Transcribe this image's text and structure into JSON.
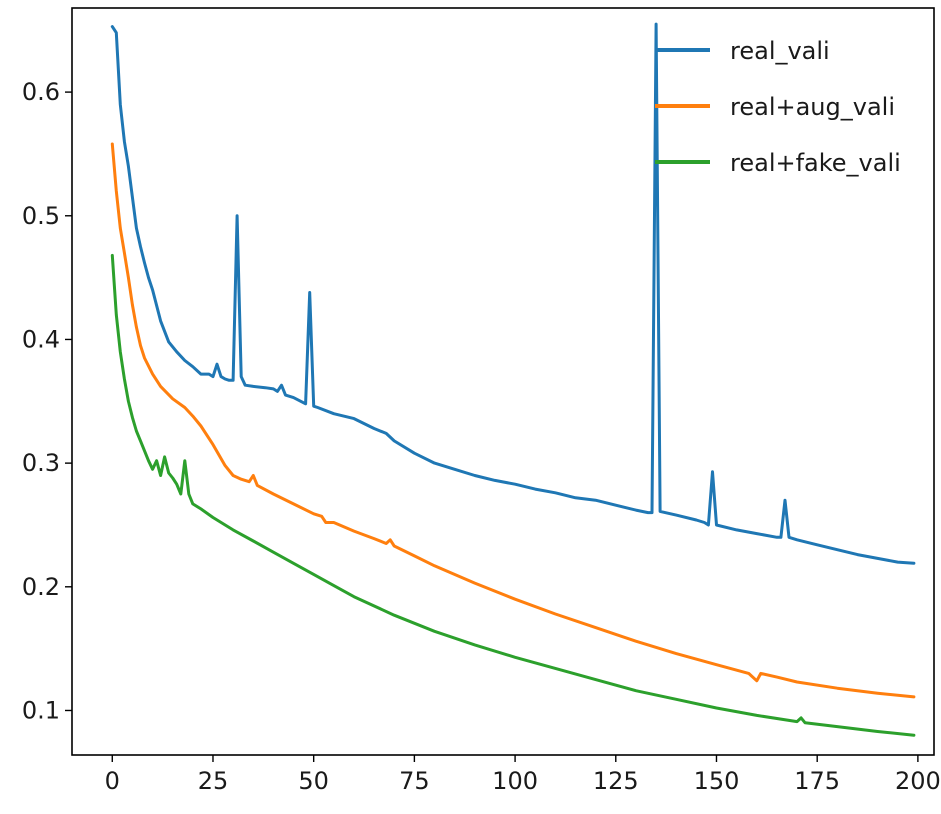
{
  "chart_data": {
    "type": "line",
    "title": "",
    "xlabel": "",
    "ylabel": "",
    "xlim": [
      -10,
      204
    ],
    "ylim": [
      0.064,
      0.668
    ],
    "xticks": [
      0,
      25,
      50,
      75,
      100,
      125,
      150,
      175,
      200
    ],
    "xtick_labels": [
      "0",
      "25",
      "50",
      "75",
      "100",
      "125",
      "150",
      "175",
      "200"
    ],
    "yticks": [
      0.1,
      0.2,
      0.3,
      0.4,
      0.5,
      0.6
    ],
    "ytick_labels": [
      "0.1",
      "0.2",
      "0.3",
      "0.4",
      "0.5",
      "0.6"
    ],
    "grid": false,
    "legend_position": "top-right",
    "series": [
      {
        "name": "real_vali",
        "color": "#1f77b4",
        "x": [
          0,
          1,
          2,
          3,
          4,
          5,
          6,
          7,
          8,
          9,
          10,
          12,
          14,
          16,
          18,
          20,
          22,
          24,
          25,
          26,
          27,
          28,
          29,
          30,
          31,
          32,
          33,
          35,
          38,
          40,
          41,
          42,
          43,
          45,
          48,
          49,
          50,
          51,
          55,
          60,
          65,
          68,
          70,
          75,
          80,
          85,
          90,
          95,
          100,
          105,
          110,
          115,
          120,
          125,
          130,
          133,
          134,
          135,
          136,
          140,
          145,
          147,
          148,
          149,
          150,
          155,
          160,
          165,
          166,
          167,
          168,
          170,
          175,
          180,
          185,
          190,
          195,
          199
        ],
        "y": [
          0.653,
          0.648,
          0.59,
          0.56,
          0.54,
          0.515,
          0.49,
          0.475,
          0.462,
          0.45,
          0.44,
          0.415,
          0.398,
          0.39,
          0.383,
          0.378,
          0.372,
          0.372,
          0.37,
          0.38,
          0.37,
          0.368,
          0.367,
          0.367,
          0.5,
          0.37,
          0.363,
          0.362,
          0.361,
          0.36,
          0.358,
          0.363,
          0.355,
          0.353,
          0.348,
          0.438,
          0.346,
          0.345,
          0.34,
          0.336,
          0.328,
          0.324,
          0.318,
          0.308,
          0.3,
          0.295,
          0.29,
          0.286,
          0.283,
          0.279,
          0.276,
          0.272,
          0.27,
          0.266,
          0.262,
          0.26,
          0.26,
          0.655,
          0.261,
          0.258,
          0.254,
          0.252,
          0.25,
          0.293,
          0.25,
          0.246,
          0.243,
          0.24,
          0.24,
          0.27,
          0.24,
          0.238,
          0.234,
          0.23,
          0.226,
          0.223,
          0.22,
          0.219
        ]
      },
      {
        "name": "real+aug_vali",
        "color": "#ff7f0e",
        "x": [
          0,
          1,
          2,
          3,
          4,
          5,
          6,
          7,
          8,
          10,
          12,
          15,
          18,
          20,
          22,
          25,
          28,
          30,
          32,
          34,
          35,
          36,
          40,
          45,
          50,
          52,
          53,
          55,
          60,
          65,
          68,
          69,
          70,
          75,
          80,
          90,
          100,
          110,
          120,
          130,
          140,
          150,
          158,
          160,
          161,
          165,
          170,
          180,
          190,
          199
        ],
        "y": [
          0.558,
          0.52,
          0.49,
          0.47,
          0.45,
          0.428,
          0.41,
          0.395,
          0.385,
          0.372,
          0.362,
          0.352,
          0.345,
          0.338,
          0.33,
          0.315,
          0.298,
          0.29,
          0.287,
          0.285,
          0.29,
          0.282,
          0.275,
          0.267,
          0.259,
          0.257,
          0.252,
          0.252,
          0.245,
          0.239,
          0.235,
          0.238,
          0.233,
          0.225,
          0.217,
          0.203,
          0.19,
          0.178,
          0.167,
          0.156,
          0.146,
          0.137,
          0.13,
          0.124,
          0.13,
          0.127,
          0.123,
          0.118,
          0.114,
          0.111
        ]
      },
      {
        "name": "real+fake_vali",
        "color": "#2ca02c",
        "x": [
          0,
          1,
          2,
          3,
          4,
          5,
          6,
          7,
          8,
          9,
          10,
          11,
          12,
          13,
          14,
          15,
          16,
          17,
          18,
          19,
          20,
          22,
          25,
          30,
          35,
          40,
          45,
          50,
          55,
          60,
          70,
          80,
          90,
          100,
          110,
          120,
          130,
          140,
          150,
          160,
          170,
          171,
          172,
          180,
          190,
          199
        ],
        "y": [
          0.468,
          0.42,
          0.39,
          0.368,
          0.35,
          0.337,
          0.326,
          0.318,
          0.31,
          0.302,
          0.295,
          0.302,
          0.29,
          0.305,
          0.292,
          0.288,
          0.283,
          0.275,
          0.302,
          0.275,
          0.267,
          0.263,
          0.256,
          0.246,
          0.237,
          0.228,
          0.219,
          0.21,
          0.201,
          0.192,
          0.177,
          0.164,
          0.153,
          0.143,
          0.134,
          0.125,
          0.116,
          0.109,
          0.102,
          0.096,
          0.091,
          0.094,
          0.09,
          0.087,
          0.083,
          0.08
        ]
      }
    ]
  }
}
